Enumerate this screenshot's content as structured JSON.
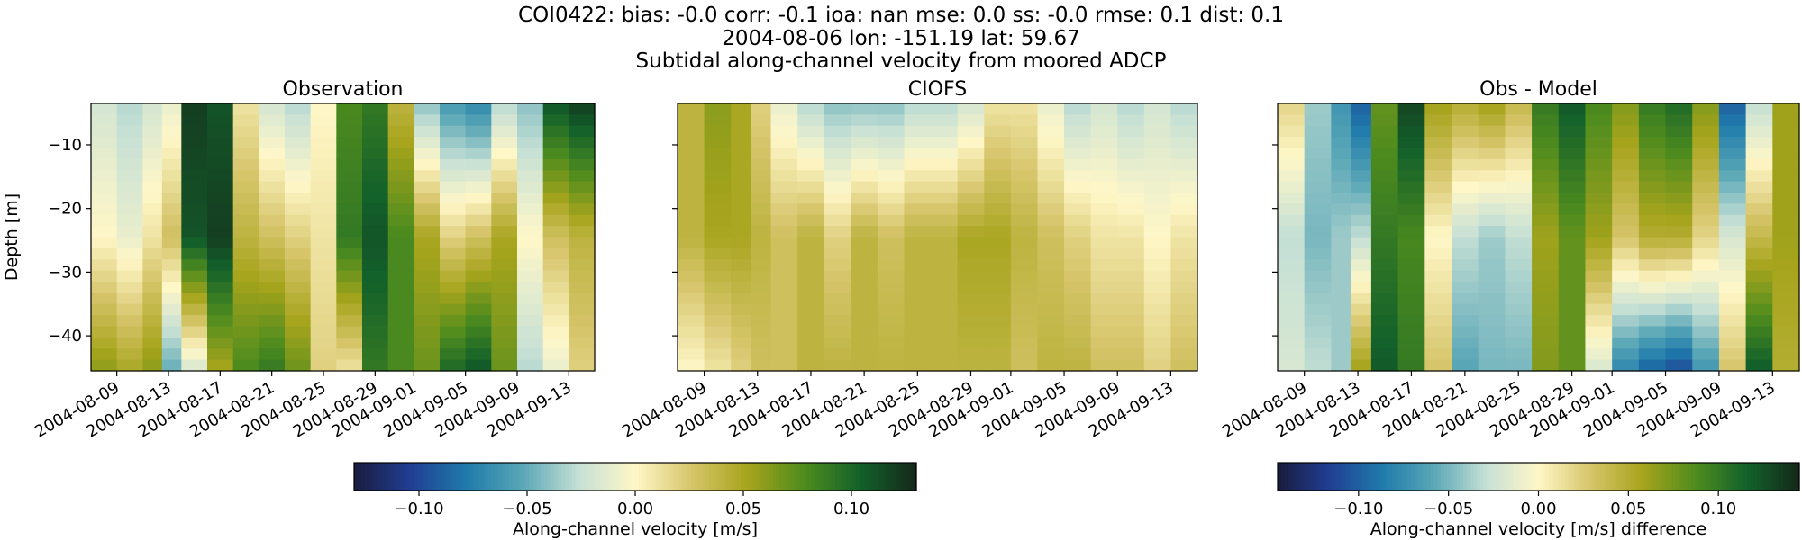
{
  "figure": {
    "suptitle": [
      "COI0422: bias: -0.0  corr: -0.1  ioa: nan  mse: 0.0  ss: -0.0  rmse: 0.1  dist: 0.1",
      "2004-08-06 lon: -151.19 lat: 59.67",
      "Subtidal along-channel velocity from moored ADCP"
    ]
  },
  "chart_data": [
    {
      "type": "heatmap",
      "title": "Observation",
      "xlabel": "",
      "ylabel": "Depth [m]",
      "x_tick_labels": [
        "2004-08-09",
        "2004-08-13",
        "2004-08-17",
        "2004-08-21",
        "2004-08-25",
        "2004-08-29",
        "2004-09-01",
        "2004-09-05",
        "2004-09-09",
        "2004-09-13"
      ],
      "y_ticks": [
        -10,
        -20,
        -30,
        -40
      ],
      "y_tick_labels": [
        "−10",
        "−20",
        "−30",
        "−40"
      ],
      "ylim": [
        -45.5,
        -3.5
      ],
      "colorbar": "velocity",
      "columns": [
        {
          "date": "2004-08-08",
          "top": -0.02,
          "mid": 0.0,
          "bot": 0.06
        },
        {
          "date": "2004-08-10",
          "top": -0.03,
          "mid": -0.01,
          "bot": 0.05
        },
        {
          "date": "2004-08-12",
          "top": -0.02,
          "mid": 0.01,
          "bot": 0.06
        },
        {
          "date": "2004-08-13",
          "top": -0.01,
          "mid": 0.03,
          "bot": -0.05
        },
        {
          "date": "2004-08-15",
          "top": 0.12,
          "mid": 0.11,
          "bot": -0.02
        },
        {
          "date": "2004-08-17",
          "top": 0.11,
          "mid": 0.12,
          "bot": 0.05
        },
        {
          "date": "2004-08-19",
          "top": 0.01,
          "mid": 0.04,
          "bot": 0.08
        },
        {
          "date": "2004-08-21",
          "top": -0.02,
          "mid": 0.03,
          "bot": 0.09
        },
        {
          "date": "2004-08-23",
          "top": -0.03,
          "mid": 0.02,
          "bot": 0.07
        },
        {
          "date": "2004-08-25",
          "top": 0.0,
          "mid": 0.01,
          "bot": 0.02
        },
        {
          "date": "2004-08-27",
          "top": 0.08,
          "mid": 0.09,
          "bot": 0.01
        },
        {
          "date": "2004-08-29",
          "top": 0.09,
          "mid": 0.11,
          "bot": 0.09
        },
        {
          "date": "2004-08-31",
          "top": 0.04,
          "mid": 0.08,
          "bot": 0.08
        },
        {
          "date": "2004-09-02",
          "top": -0.04,
          "mid": 0.05,
          "bot": 0.07
        },
        {
          "date": "2004-09-04",
          "top": -0.06,
          "mid": 0.02,
          "bot": 0.1
        },
        {
          "date": "2004-09-06",
          "top": -0.07,
          "mid": 0.03,
          "bot": 0.11
        },
        {
          "date": "2004-09-08",
          "top": -0.03,
          "mid": 0.05,
          "bot": 0.07
        },
        {
          "date": "2004-09-10",
          "top": -0.04,
          "mid": 0.0,
          "bot": -0.03
        },
        {
          "date": "2004-09-12",
          "top": 0.11,
          "mid": 0.03,
          "bot": -0.01
        },
        {
          "date": "2004-09-14",
          "top": 0.12,
          "mid": 0.04,
          "bot": 0.02
        }
      ]
    },
    {
      "type": "heatmap",
      "title": "CIOFS",
      "xlabel": "",
      "ylabel": "",
      "x_tick_labels": [
        "2004-08-09",
        "2004-08-13",
        "2004-08-17",
        "2004-08-21",
        "2004-08-25",
        "2004-08-29",
        "2004-09-01",
        "2004-09-05",
        "2004-09-09",
        "2004-09-13"
      ],
      "y_ticks": [
        -10,
        -20,
        -30,
        -40
      ],
      "y_tick_labels": [],
      "ylim": [
        -45.5,
        -3.5
      ],
      "colorbar": "velocity",
      "columns": [
        {
          "date": "2004-08-08",
          "top": 0.04,
          "mid": 0.04,
          "bot": 0.0
        },
        {
          "date": "2004-08-10",
          "top": 0.06,
          "mid": 0.05,
          "bot": 0.01
        },
        {
          "date": "2004-08-12",
          "top": 0.05,
          "mid": 0.05,
          "bot": 0.02
        },
        {
          "date": "2004-08-13",
          "top": 0.02,
          "mid": 0.04,
          "bot": 0.03
        },
        {
          "date": "2004-08-15",
          "top": -0.01,
          "mid": 0.03,
          "bot": 0.03
        },
        {
          "date": "2004-08-17",
          "top": -0.03,
          "mid": 0.04,
          "bot": 0.04
        },
        {
          "date": "2004-08-19",
          "top": -0.04,
          "mid": 0.02,
          "bot": 0.04
        },
        {
          "date": "2004-08-21",
          "top": -0.04,
          "mid": 0.04,
          "bot": 0.04
        },
        {
          "date": "2004-08-23",
          "top": -0.04,
          "mid": 0.03,
          "bot": 0.04
        },
        {
          "date": "2004-08-25",
          "top": -0.03,
          "mid": 0.04,
          "bot": 0.04
        },
        {
          "date": "2004-08-27",
          "top": -0.03,
          "mid": 0.04,
          "bot": 0.04
        },
        {
          "date": "2004-08-29",
          "top": -0.02,
          "mid": 0.05,
          "bot": 0.04
        },
        {
          "date": "2004-08-31",
          "top": 0.01,
          "mid": 0.05,
          "bot": 0.04
        },
        {
          "date": "2004-09-02",
          "top": 0.01,
          "mid": 0.04,
          "bot": 0.03
        },
        {
          "date": "2004-09-04",
          "top": -0.01,
          "mid": 0.03,
          "bot": 0.04
        },
        {
          "date": "2004-09-06",
          "top": -0.03,
          "mid": 0.02,
          "bot": 0.04
        },
        {
          "date": "2004-09-08",
          "top": -0.02,
          "mid": 0.01,
          "bot": 0.03
        },
        {
          "date": "2004-09-10",
          "top": -0.03,
          "mid": 0.01,
          "bot": 0.03
        },
        {
          "date": "2004-09-12",
          "top": -0.02,
          "mid": 0.0,
          "bot": 0.02
        },
        {
          "date": "2004-09-14",
          "top": -0.03,
          "mid": 0.01,
          "bot": 0.03
        }
      ]
    },
    {
      "type": "heatmap",
      "title": "Obs - Model",
      "xlabel": "",
      "ylabel": "",
      "x_tick_labels": [
        "2004-08-09",
        "2004-08-13",
        "2004-08-17",
        "2004-08-21",
        "2004-08-25",
        "2004-08-29",
        "2004-09-01",
        "2004-09-05",
        "2004-09-09",
        "2004-09-13"
      ],
      "y_ticks": [
        -10,
        -20,
        -30,
        -40
      ],
      "y_tick_labels": [],
      "ylim": [
        -45.5,
        -3.5
      ],
      "colorbar": "difference",
      "columns": [
        {
          "date": "2004-08-08",
          "top": 0.02,
          "mid": -0.03,
          "bot": -0.02
        },
        {
          "date": "2004-08-10",
          "top": -0.04,
          "mid": -0.05,
          "bot": -0.03
        },
        {
          "date": "2004-08-12",
          "top": -0.07,
          "mid": -0.04,
          "bot": -0.04
        },
        {
          "date": "2004-08-13",
          "top": -0.1,
          "mid": -0.03,
          "bot": 0.06
        },
        {
          "date": "2004-08-15",
          "top": 0.08,
          "mid": 0.1,
          "bot": 0.12
        },
        {
          "date": "2004-08-17",
          "top": 0.13,
          "mid": 0.09,
          "bot": 0.1
        },
        {
          "date": "2004-08-19",
          "top": 0.06,
          "mid": 0.0,
          "bot": 0.03
        },
        {
          "date": "2004-08-21",
          "top": 0.05,
          "mid": -0.03,
          "bot": -0.06
        },
        {
          "date": "2004-08-23",
          "top": 0.06,
          "mid": -0.04,
          "bot": -0.05
        },
        {
          "date": "2004-08-25",
          "top": 0.04,
          "mid": -0.03,
          "bot": -0.05
        },
        {
          "date": "2004-08-27",
          "top": 0.1,
          "mid": 0.06,
          "bot": 0.07
        },
        {
          "date": "2004-08-29",
          "top": 0.12,
          "mid": 0.08,
          "bot": 0.08
        },
        {
          "date": "2004-08-31",
          "top": 0.09,
          "mid": 0.06,
          "bot": -0.02
        },
        {
          "date": "2004-09-02",
          "top": 0.07,
          "mid": 0.03,
          "bot": -0.08
        },
        {
          "date": "2004-09-04",
          "top": 0.1,
          "mid": 0.05,
          "bot": -0.1
        },
        {
          "date": "2004-09-06",
          "top": 0.11,
          "mid": 0.05,
          "bot": -0.11
        },
        {
          "date": "2004-09-08",
          "top": 0.07,
          "mid": 0.02,
          "bot": -0.07
        },
        {
          "date": "2004-09-10",
          "top": -0.1,
          "mid": -0.02,
          "bot": 0.03
        },
        {
          "date": "2004-09-12",
          "top": -0.03,
          "mid": 0.04,
          "bot": 0.12
        },
        {
          "date": "2004-09-14",
          "top": 0.06,
          "mid": 0.06,
          "bot": 0.05
        }
      ]
    }
  ],
  "colorbars": {
    "velocity": {
      "label": "Along-channel velocity [m/s]",
      "vmin": -0.13,
      "vmax": 0.13,
      "ticks": [
        -0.1,
        -0.05,
        0.0,
        0.05,
        0.1
      ],
      "tick_labels": [
        "−0.10",
        "−0.05",
        "0.00",
        "0.05",
        "0.10"
      ]
    },
    "difference": {
      "label": "Along-channel velocity [m/s] difference",
      "vmin": -0.145,
      "vmax": 0.145,
      "ticks": [
        -0.1,
        -0.05,
        0.0,
        0.05,
        0.1
      ],
      "tick_labels": [
        "−0.10",
        "−0.05",
        "0.00",
        "0.05",
        "0.10"
      ]
    }
  },
  "colormap": [
    "#191c3e",
    "#213e93",
    "#1f7bab",
    "#5aa7b6",
    "#c6e0d5",
    "#fff7c8",
    "#d6c56a",
    "#a6a41c",
    "#4f8c1e",
    "#13612b",
    "#15281a"
  ]
}
